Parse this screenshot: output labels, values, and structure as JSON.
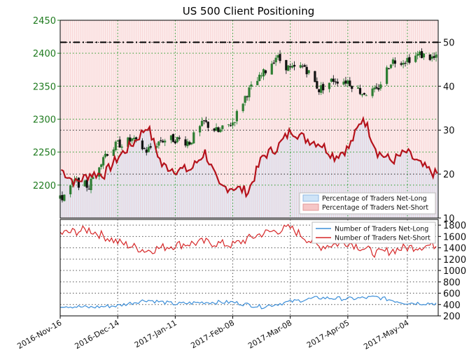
{
  "chart_data": [
    {
      "type": "candlestick+line",
      "title": "US 500 Client Positioning",
      "left_axis": {
        "ylim": [
          2150,
          2450
        ],
        "ticks": [
          "2200",
          "2250",
          "2300",
          "2350",
          "2400",
          "2450"
        ]
      },
      "right_axis": {
        "ylim": [
          10,
          55
        ],
        "ticks": [
          "10",
          "20",
          "30",
          "40",
          "50"
        ]
      },
      "reference_line": {
        "value": 50
      },
      "legend": {
        "placement": "bottom-right",
        "entries": [
          "Percentage of Traders Net-Long",
          "Percentage of Traders Net-Short"
        ]
      },
      "colors": {
        "net_long": "#cfe4f7",
        "net_short": "#f6c6c6",
        "line": "#b5121b",
        "up": "#2e7d32",
        "down": "#111111"
      },
      "price_path": [
        [
          "2016-11-16",
          2178
        ],
        [
          "2016-11-23",
          2205
        ],
        [
          "2016-11-30",
          2198
        ],
        [
          "2016-12-07",
          2245
        ],
        [
          "2016-12-14",
          2262
        ],
        [
          "2016-12-21",
          2268
        ],
        [
          "2016-12-28",
          2252
        ],
        [
          "2017-01-04",
          2268
        ],
        [
          "2017-01-11",
          2270
        ],
        [
          "2017-01-18",
          2265
        ],
        [
          "2017-01-25",
          2295
        ],
        [
          "2017-02-01",
          2280
        ],
        [
          "2017-02-08",
          2295
        ],
        [
          "2017-02-15",
          2340
        ],
        [
          "2017-02-22",
          2365
        ],
        [
          "2017-03-01",
          2395
        ],
        [
          "2017-03-08",
          2375
        ],
        [
          "2017-03-15",
          2380
        ],
        [
          "2017-03-22",
          2345
        ],
        [
          "2017-03-29",
          2360
        ],
        [
          "2017-04-05",
          2358
        ],
        [
          "2017-04-12",
          2340
        ],
        [
          "2017-04-19",
          2342
        ],
        [
          "2017-04-26",
          2388
        ],
        [
          "2017-05-03",
          2390
        ],
        [
          "2017-05-10",
          2398
        ],
        [
          "2017-05-17",
          2392
        ]
      ],
      "net_short_pct_path": [
        [
          "2016-11-16",
          21
        ],
        [
          "2016-11-23",
          18
        ],
        [
          "2016-11-30",
          20
        ],
        [
          "2016-12-07",
          20
        ],
        [
          "2016-12-14",
          24
        ],
        [
          "2016-12-21",
          27
        ],
        [
          "2016-12-28",
          31
        ],
        [
          "2017-01-04",
          22
        ],
        [
          "2017-01-11",
          21
        ],
        [
          "2017-01-18",
          21
        ],
        [
          "2017-01-25",
          25
        ],
        [
          "2017-02-01",
          17
        ],
        [
          "2017-02-08",
          17
        ],
        [
          "2017-02-15",
          16
        ],
        [
          "2017-02-22",
          24
        ],
        [
          "2017-03-01",
          26
        ],
        [
          "2017-03-08",
          30
        ],
        [
          "2017-03-15",
          28
        ],
        [
          "2017-03-22",
          27
        ],
        [
          "2017-03-29",
          24
        ],
        [
          "2017-04-05",
          26
        ],
        [
          "2017-04-12",
          33
        ],
        [
          "2017-04-19",
          25
        ],
        [
          "2017-04-26",
          23
        ],
        [
          "2017-05-03",
          25
        ],
        [
          "2017-05-10",
          22
        ],
        [
          "2017-05-17",
          20
        ]
      ]
    },
    {
      "type": "line",
      "ylim": [
        200,
        1900
      ],
      "y_ticks": [
        "200",
        "400",
        "600",
        "800",
        "1000",
        "1200",
        "1400",
        "1600",
        "1800"
      ],
      "x_ticks": [
        "2016-Nov-16",
        "2016-Dec-14",
        "2017-Jan-11",
        "2017-Feb-08",
        "2017-Mar-08",
        "2017-Apr-05",
        "2017-May-04"
      ],
      "legend": {
        "placement": "top-right"
      },
      "series": [
        {
          "name": "Number of Traders Net-Long",
          "color": "#3d8fd9",
          "points": [
            [
              "2016-11-16",
              380
            ],
            [
              "2016-11-30",
              350
            ],
            [
              "2016-12-14",
              380
            ],
            [
              "2016-12-28",
              480
            ],
            [
              "2017-01-11",
              410
            ],
            [
              "2017-01-25",
              440
            ],
            [
              "2017-02-08",
              440
            ],
            [
              "2017-02-22",
              360
            ],
            [
              "2017-03-08",
              450
            ],
            [
              "2017-03-22",
              520
            ],
            [
              "2017-04-05",
              500
            ],
            [
              "2017-04-19",
              530
            ],
            [
              "2017-05-03",
              430
            ],
            [
              "2017-05-17",
              420
            ]
          ]
        },
        {
          "name": "Number of Traders Net-Short",
          "color": "#d62728",
          "points": [
            [
              "2016-11-16",
              1650
            ],
            [
              "2016-11-30",
              1720
            ],
            [
              "2016-12-14",
              1500
            ],
            [
              "2016-12-28",
              1350
            ],
            [
              "2017-01-11",
              1450
            ],
            [
              "2017-01-25",
              1500
            ],
            [
              "2017-02-08",
              1450
            ],
            [
              "2017-02-22",
              1650
            ],
            [
              "2017-03-08",
              1750
            ],
            [
              "2017-03-22",
              1420
            ],
            [
              "2017-04-05",
              1500
            ],
            [
              "2017-04-19",
              1300
            ],
            [
              "2017-05-03",
              1400
            ],
            [
              "2017-05-17",
              1450
            ]
          ]
        }
      ]
    }
  ]
}
